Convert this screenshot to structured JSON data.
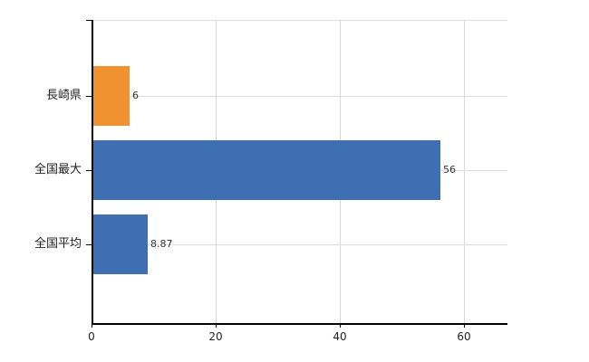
{
  "chart_data": {
    "type": "bar",
    "orientation": "horizontal",
    "title": "",
    "categories": [
      "長崎県",
      "全国最大",
      "全国平均"
    ],
    "values": [
      6,
      56,
      8.87
    ],
    "value_labels": [
      "6",
      "56",
      "8.87"
    ],
    "bar_colors": [
      "#EF922F",
      "#3E6FB3",
      "#3E6FB3"
    ],
    "xlim": [
      0,
      67
    ],
    "x_ticks": [
      0,
      20,
      40,
      60
    ],
    "x_tick_labels": [
      "0",
      "20",
      "40",
      "60"
    ],
    "legend_position": "none",
    "grid": "on"
  },
  "colors": {
    "background": "#FFFFFF",
    "axis": "#000000",
    "gridline": "#DCDCDC",
    "text": "#222222",
    "bar_orange": "#EF922F",
    "bar_blue": "#3E6FB3"
  }
}
